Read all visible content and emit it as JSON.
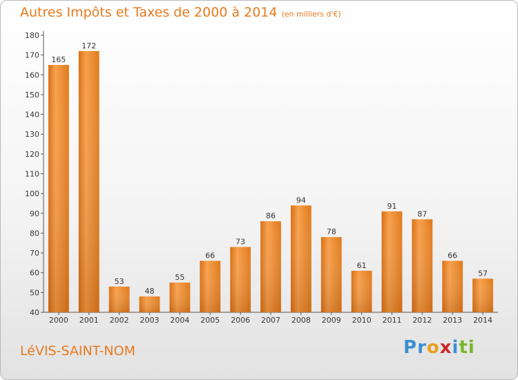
{
  "chart_data": {
    "type": "bar",
    "title": "Autres Impôts et Taxes de 2000 à 2014",
    "subtitle": "(en milliers d'€)",
    "categories": [
      "2000",
      "2001",
      "2002",
      "2003",
      "2004",
      "2005",
      "2006",
      "2007",
      "2008",
      "2009",
      "2010",
      "2011",
      "2012",
      "2013",
      "2014"
    ],
    "values": [
      165,
      172,
      53,
      48,
      55,
      66,
      73,
      86,
      94,
      78,
      61,
      91,
      87,
      66,
      57
    ],
    "ylim": [
      40,
      180
    ],
    "yticks": [
      40,
      50,
      60,
      70,
      80,
      90,
      100,
      110,
      120,
      130,
      140,
      150,
      160,
      170,
      180
    ],
    "grid": false,
    "bar_color": "#f08a2a"
  },
  "footer": {
    "city": "LéVIS-SAINT-NOM",
    "brand": [
      "P",
      "r",
      "o",
      "x",
      "i",
      "t",
      "i"
    ]
  },
  "colors": {
    "accent": "#e87a1e",
    "brand_letters": [
      "#3a8fd0",
      "#3a8fd0",
      "#e8a11a",
      "#d0262a",
      "#3a8fd0",
      "#7ab62c",
      "#7ab62c"
    ]
  }
}
